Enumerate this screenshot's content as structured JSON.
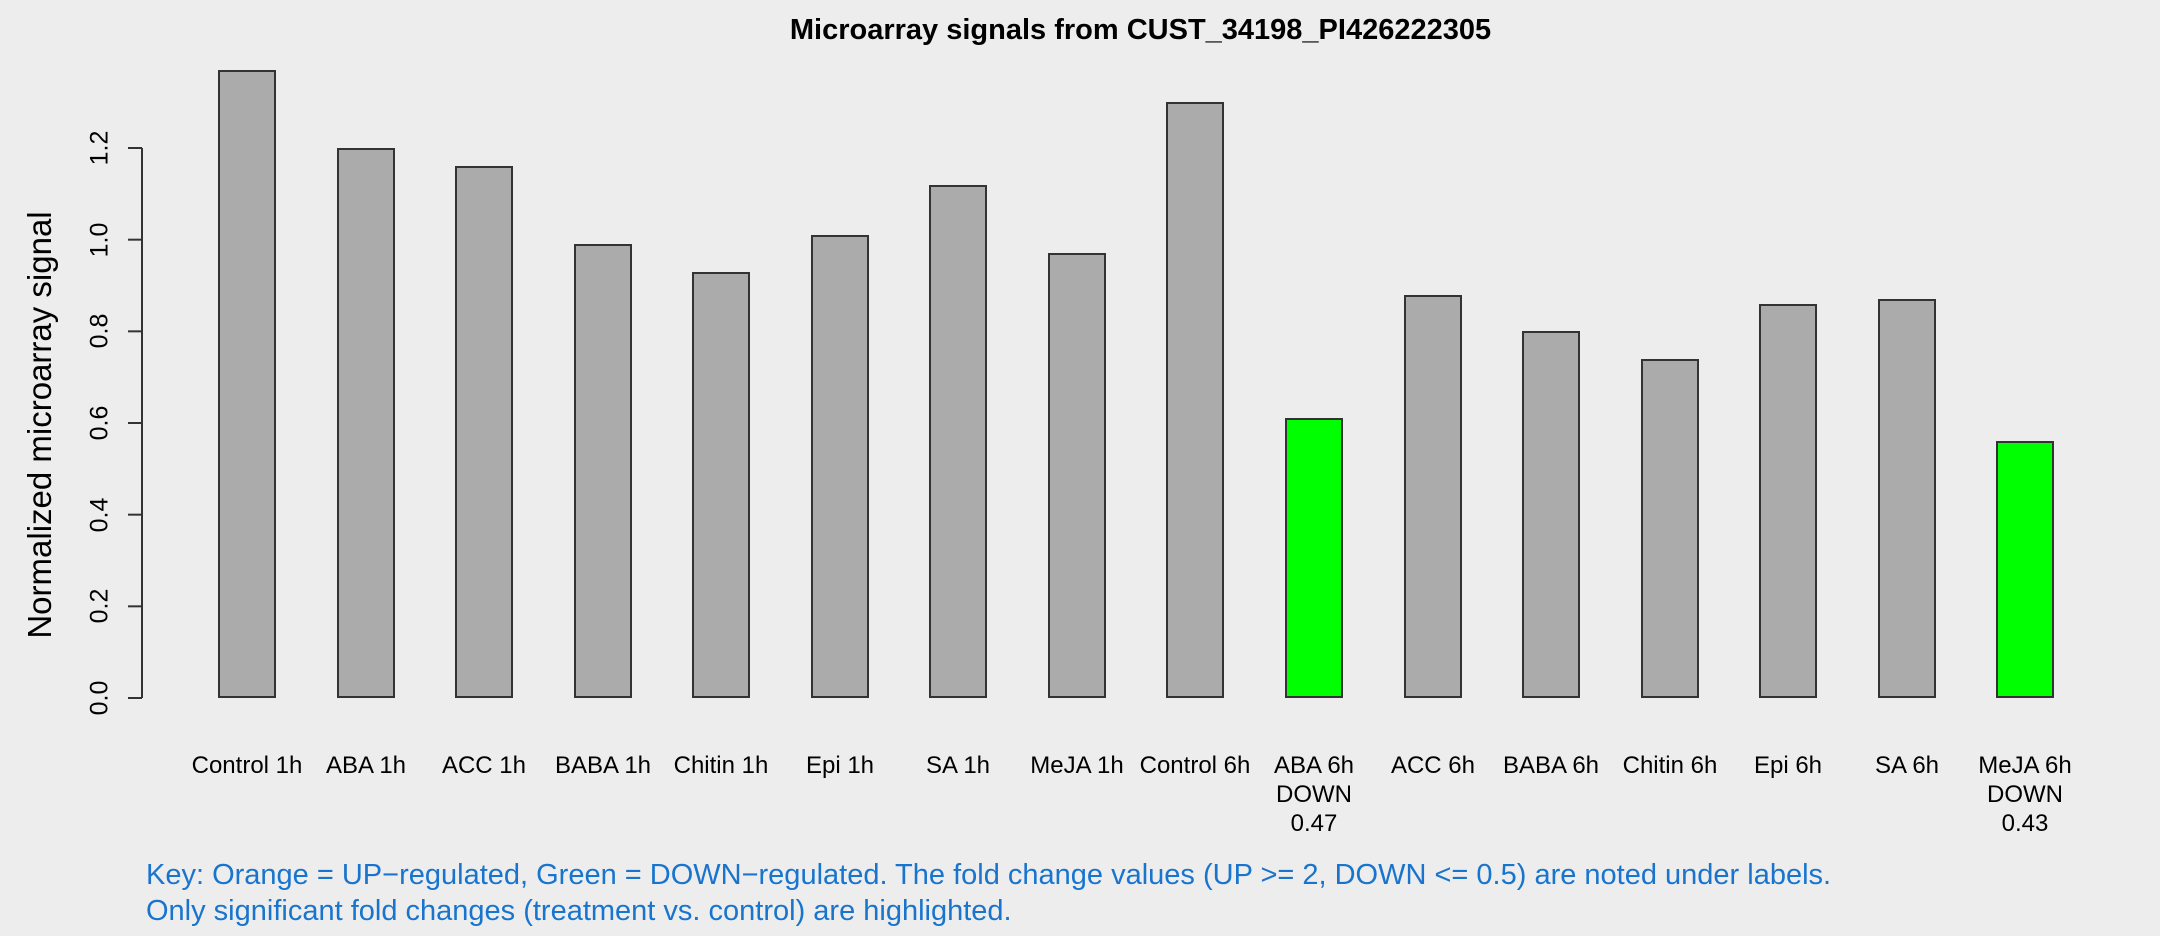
{
  "chart_data": {
    "type": "bar",
    "title": "Microarray signals from CUST_34198_PI426222305",
    "ylabel": "Normalized microarray signal",
    "xlabel": "",
    "ylim": [
      0,
      1.37
    ],
    "yticks": [
      "0.0",
      "0.2",
      "0.4",
      "0.6",
      "0.8",
      "1.0",
      "1.2"
    ],
    "ytick_values": [
      0.0,
      0.2,
      0.4,
      0.6,
      0.8,
      1.0,
      1.2
    ],
    "grid": false,
    "legend_position": "none",
    "categories": [
      "Control 1h",
      "ABA 1h",
      "ACC 1h",
      "BABA 1h",
      "Chitin 1h",
      "Epi 1h",
      "SA 1h",
      "MeJA 1h",
      "Control 6h",
      "ABA 6h",
      "ACC 6h",
      "BABA 6h",
      "Chitin 6h",
      "Epi 6h",
      "SA 6h",
      "MeJA 6h"
    ],
    "bars": [
      {
        "label": "Control 1h",
        "value": 1.37,
        "color": "gray",
        "note": []
      },
      {
        "label": "ABA 1h",
        "value": 1.2,
        "color": "gray",
        "note": []
      },
      {
        "label": "ACC 1h",
        "value": 1.16,
        "color": "gray",
        "note": []
      },
      {
        "label": "BABA 1h",
        "value": 0.99,
        "color": "gray",
        "note": []
      },
      {
        "label": "Chitin 1h",
        "value": 0.93,
        "color": "gray",
        "note": []
      },
      {
        "label": "Epi 1h",
        "value": 1.01,
        "color": "gray",
        "note": []
      },
      {
        "label": "SA 1h",
        "value": 1.12,
        "color": "gray",
        "note": []
      },
      {
        "label": "MeJA 1h",
        "value": 0.97,
        "color": "gray",
        "note": []
      },
      {
        "label": "Control 6h",
        "value": 1.3,
        "color": "gray",
        "note": []
      },
      {
        "label": "ABA 6h",
        "value": 0.61,
        "color": "green",
        "note": [
          "DOWN",
          "0.47"
        ]
      },
      {
        "label": "ACC 6h",
        "value": 0.88,
        "color": "gray",
        "note": []
      },
      {
        "label": "BABA 6h",
        "value": 0.8,
        "color": "gray",
        "note": []
      },
      {
        "label": "Chitin 6h",
        "value": 0.74,
        "color": "gray",
        "note": []
      },
      {
        "label": "Epi 6h",
        "value": 0.86,
        "color": "gray",
        "note": []
      },
      {
        "label": "SA 6h",
        "value": 0.87,
        "color": "gray",
        "note": []
      },
      {
        "label": "MeJA 6h",
        "value": 0.56,
        "color": "green",
        "note": [
          "DOWN",
          "0.43"
        ]
      }
    ]
  },
  "key": {
    "line1": "Key: Orange = UP−regulated, Green = DOWN−regulated. The fold change values (UP >= 2, DOWN <= 0.5) are noted under labels.",
    "line2": "Only significant fold changes (treatment vs. control) are highlighted."
  },
  "colors": {
    "background": "#EDEDED",
    "bar_gray": "#ABABAB",
    "bar_green": "#00FF00",
    "bar_border": "#333333",
    "axis": "#333333",
    "text": "#000000",
    "key_text": "#1874CD"
  }
}
